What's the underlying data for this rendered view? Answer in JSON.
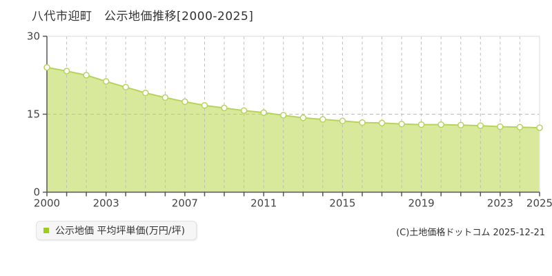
{
  "page": {
    "title": "八代市迎町　公示地価推移[2000-2025]",
    "copyright": "(C)土地価格ドットコム 2025-12-21"
  },
  "legend": {
    "label": "公示地価 平均坪単価(万円/坪)"
  },
  "colors": {
    "line": "#b5d45a",
    "fill": "#cfe382",
    "fill_opacity": "0.8",
    "marker_fill": "#ffffff",
    "legend_marker": "#9fca1e",
    "axis": "#555555",
    "grid": "#bbbbbb",
    "plot_border": "#e6e6e6",
    "tick_text": "#444444",
    "title_text": "#333333"
  },
  "chart_data": {
    "type": "area",
    "title": "八代市迎町 公示地価推移[2000-2025]",
    "series_name": "公示地価 平均坪単価(万円/坪)",
    "xlabel": "",
    "ylabel": "万円/坪",
    "x": [
      2000,
      2001,
      2002,
      2003,
      2004,
      2005,
      2006,
      2007,
      2008,
      2009,
      2010,
      2011,
      2012,
      2013,
      2014,
      2015,
      2016,
      2017,
      2018,
      2019,
      2020,
      2021,
      2022,
      2023,
      2024,
      2025
    ],
    "values": [
      24.0,
      23.3,
      22.5,
      21.3,
      20.2,
      19.1,
      18.2,
      17.4,
      16.7,
      16.2,
      15.7,
      15.3,
      14.8,
      14.3,
      14.0,
      13.7,
      13.4,
      13.3,
      13.1,
      13.0,
      13.0,
      12.9,
      12.8,
      12.6,
      12.5,
      12.4
    ],
    "ylim": [
      0,
      30
    ],
    "yticks": [
      0,
      15,
      30
    ],
    "xtick_labels": [
      2000,
      2003,
      2007,
      2011,
      2015,
      2019,
      2023,
      2025
    ],
    "grid": "vertical dashed line per year; horizontal dashed line at 15",
    "legend_position": "bottom-left"
  }
}
